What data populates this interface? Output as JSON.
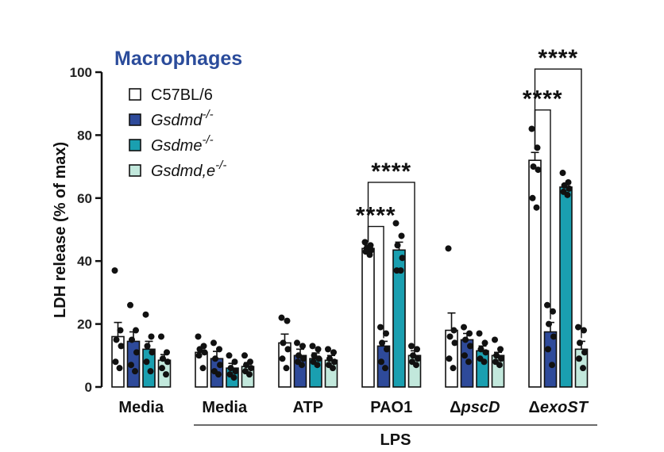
{
  "chart_data": {
    "type": "bar",
    "title": "Macrophages",
    "ylabel": "LDH release (% of max)",
    "ylim": [
      0,
      100
    ],
    "yticks": [
      0,
      20,
      40,
      60,
      80,
      100
    ],
    "categories": [
      "Media",
      "Media",
      "ATP",
      "PAO1",
      "ΔpscD",
      "ΔexoST"
    ],
    "category_labels": [
      {
        "prefix": "",
        "main": "Media",
        "italic": false
      },
      {
        "prefix": "",
        "main": "Media",
        "italic": false
      },
      {
        "prefix": "",
        "main": "ATP",
        "italic": false
      },
      {
        "prefix": "",
        "main": "PAO1",
        "italic": false
      },
      {
        "prefix": "Δ",
        "main": "pscD",
        "italic": true
      },
      {
        "prefix": "Δ",
        "main": "exoST",
        "italic": true
      }
    ],
    "group_label": "LPS",
    "series": [
      {
        "name": "C57BL/6",
        "sup": "",
        "italic": false,
        "color": "#ffffff",
        "values": [
          16,
          11,
          14,
          44,
          18,
          72
        ],
        "errors": [
          4.5,
          1.5,
          2.8,
          1.0,
          5.5,
          2.5
        ],
        "points": [
          [
            37,
            18,
            15,
            13,
            8,
            6
          ],
          [
            16,
            13,
            12,
            11,
            10,
            6
          ],
          [
            22,
            21,
            14,
            12,
            9,
            6
          ],
          [
            46,
            45,
            44,
            43.5,
            43,
            42
          ],
          [
            44,
            18,
            16,
            14,
            9,
            6
          ],
          [
            82,
            76,
            70,
            69,
            60,
            57
          ]
        ]
      },
      {
        "name": "Gsdmd",
        "sup": "-/-",
        "italic": true,
        "color": "#2e4a9a",
        "values": [
          14.5,
          9,
          10,
          13,
          15,
          17.5
        ],
        "errors": [
          3.0,
          2.3,
          2.0,
          1.5,
          2.0,
          3.0
        ],
        "points": [
          [
            26,
            18,
            15,
            11,
            7,
            5
          ],
          [
            14,
            12,
            9,
            7,
            5,
            4
          ],
          [
            14,
            13,
            10,
            9,
            8,
            7
          ],
          [
            19,
            17,
            14,
            12,
            8,
            6
          ],
          [
            19,
            17,
            15,
            13,
            10,
            8
          ],
          [
            26,
            24,
            20,
            16,
            12,
            7
          ]
        ]
      },
      {
        "name": "Gsdme",
        "sup": "-/-",
        "italic": true,
        "color": "#1a9fb0",
        "values": [
          12,
          6,
          9,
          43.5,
          11.5,
          63.5
        ],
        "errors": [
          2.5,
          1.5,
          1.8,
          2.5,
          1.5,
          1.0
        ],
        "points": [
          [
            23,
            16,
            13,
            11,
            8,
            5
          ],
          [
            10,
            8,
            6,
            5,
            4,
            3
          ],
          [
            13,
            12,
            10,
            9,
            8,
            7
          ],
          [
            52,
            48,
            45,
            41,
            37,
            37
          ],
          [
            17,
            14,
            12,
            11,
            9,
            8
          ],
          [
            68,
            65,
            64,
            63,
            62,
            61
          ]
        ]
      },
      {
        "name": "Gsdmd,e",
        "sup": "-/-",
        "italic": true,
        "color": "#c2e8dc",
        "values": [
          8.5,
          6.5,
          8.5,
          10,
          10,
          12
        ],
        "errors": [
          1.8,
          1.2,
          1.5,
          1.5,
          1.0,
          2.5
        ],
        "points": [
          [
            16,
            11,
            9,
            8,
            6,
            4
          ],
          [
            10,
            8,
            7,
            6,
            5,
            4
          ],
          [
            12,
            11,
            9,
            8,
            7,
            6
          ],
          [
            13,
            12,
            10,
            9,
            8,
            7
          ],
          [
            15,
            12,
            10,
            9,
            8,
            7
          ],
          [
            19,
            18,
            14,
            11,
            9,
            6
          ]
        ]
      }
    ],
    "significance": [
      {
        "group": 3,
        "from": 0,
        "to": 1,
        "label": "****",
        "y": 51
      },
      {
        "group": 3,
        "from": 0,
        "to": 3,
        "label": "****",
        "y": 65
      },
      {
        "group": 5,
        "from": 0,
        "to": 1,
        "label": "****",
        "y": 88
      },
      {
        "group": 5,
        "from": 0,
        "to": 3,
        "label": "****",
        "y": 101
      }
    ],
    "legend_position": "top-left"
  }
}
